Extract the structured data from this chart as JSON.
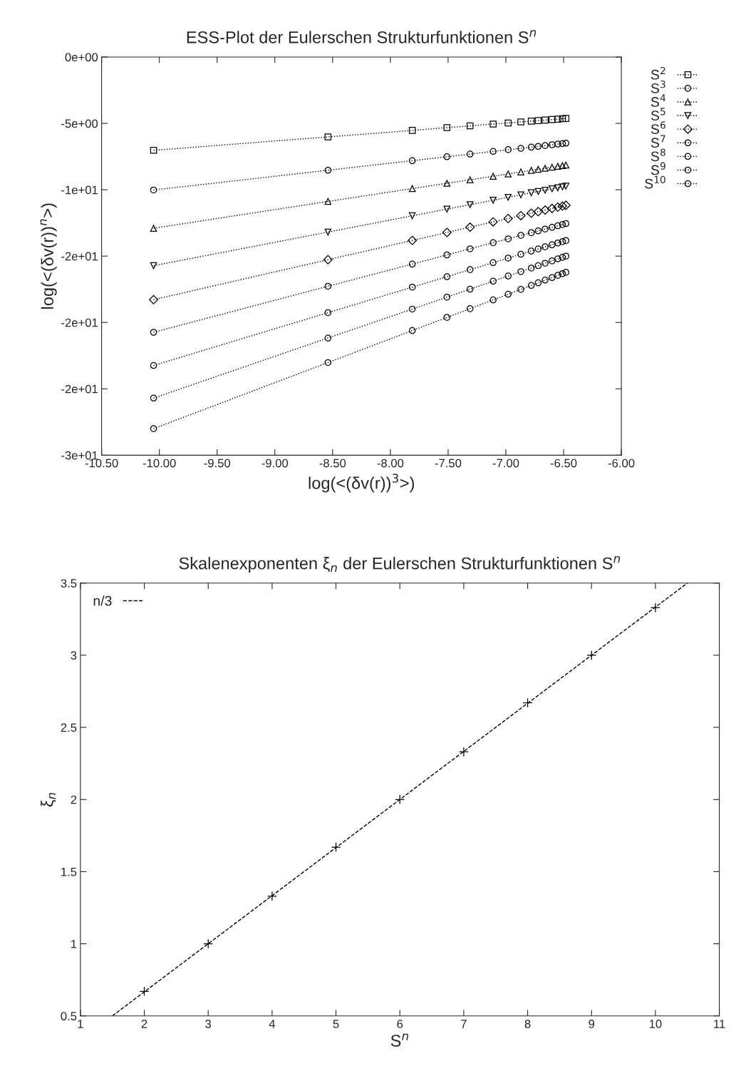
{
  "chart_data": [
    {
      "type": "line",
      "title": "ESS-Plot der Eulerschen Strukturfunktionen S$^{n}$",
      "xlabel": "log(<(δv(r))$^{3}$>)",
      "ylabel": "log(<(δv(r))$^{n}$>)",
      "x": [
        -10.05,
        -8.54,
        -7.81,
        -7.51,
        -7.31,
        -7.11,
        -6.98,
        -6.87,
        -6.78,
        -6.72,
        -6.66,
        -6.6,
        -6.55,
        -6.51,
        -6.48
      ],
      "xlim": [
        -10.5,
        -6.0
      ],
      "ylim": [
        -30,
        0
      ],
      "xticks": [
        {
          "value": -10.5,
          "label": "-10.50"
        },
        {
          "value": -10.0,
          "label": "-10.00"
        },
        {
          "value": -9.5,
          "label": "-9.50"
        },
        {
          "value": -9.0,
          "label": "-9.00"
        },
        {
          "value": -8.5,
          "label": "-8.50"
        },
        {
          "value": -8.0,
          "label": "-8.00"
        },
        {
          "value": -7.5,
          "label": "-7.50"
        },
        {
          "value": -7.0,
          "label": "-7.00"
        },
        {
          "value": -6.5,
          "label": "-6.50"
        },
        {
          "value": -6.0,
          "label": "-6.00"
        }
      ],
      "yticks": [
        {
          "value": 0,
          "label": "0e+00"
        },
        {
          "value": -5,
          "label": "-5e+00"
        },
        {
          "value": -10,
          "label": "-1e+01"
        },
        {
          "value": -15,
          "label": "-2e+01"
        },
        {
          "value": -20,
          "label": "-2e+01"
        },
        {
          "value": -25,
          "label": "-2e+01"
        },
        {
          "value": -30,
          "label": "-3e+01"
        }
      ],
      "grid": false,
      "legend": "right",
      "line_style": "dotted",
      "series": [
        {
          "name": "S$^{2}$",
          "color": "#000000",
          "marker": "square",
          "values": [
            -7.03,
            -6.02,
            -5.53,
            -5.32,
            -5.19,
            -5.05,
            -4.97,
            -4.89,
            -4.83,
            -4.79,
            -4.75,
            -4.71,
            -4.68,
            -4.65,
            -4.63
          ]
        },
        {
          "name": "S$^{3}$",
          "color": "#000000",
          "marker": "circle",
          "values": [
            -10.02,
            -8.53,
            -7.81,
            -7.51,
            -7.31,
            -7.11,
            -6.98,
            -6.88,
            -6.79,
            -6.73,
            -6.67,
            -6.61,
            -6.56,
            -6.52,
            -6.49
          ]
        },
        {
          "name": "S$^{4}$",
          "color": "#000000",
          "marker": "triangle",
          "values": [
            -12.9,
            -10.88,
            -9.91,
            -9.51,
            -9.25,
            -8.98,
            -8.81,
            -8.66,
            -8.54,
            -8.46,
            -8.38,
            -8.3,
            -8.23,
            -8.18,
            -8.14
          ]
        },
        {
          "name": "S$^{5}$",
          "color": "#000000",
          "marker": "triangle_down",
          "values": [
            -15.72,
            -13.19,
            -11.96,
            -11.46,
            -11.12,
            -10.79,
            -10.57,
            -10.38,
            -10.23,
            -10.13,
            -10.03,
            -9.93,
            -9.85,
            -9.78,
            -9.73
          ]
        },
        {
          "name": "S$^{6}$",
          "color": "#000000",
          "marker": "diamond",
          "values": [
            -18.28,
            -15.27,
            -13.82,
            -13.22,
            -12.82,
            -12.42,
            -12.17,
            -11.95,
            -11.77,
            -11.65,
            -11.53,
            -11.41,
            -11.31,
            -11.23,
            -11.17
          ]
        },
        {
          "name": "S$^{7}$",
          "color": "#000000",
          "marker": "circle",
          "values": [
            -20.74,
            -17.27,
            -15.6,
            -14.91,
            -14.45,
            -13.99,
            -13.7,
            -13.44,
            -13.24,
            -13.1,
            -12.96,
            -12.83,
            -12.71,
            -12.62,
            -12.55
          ]
        },
        {
          "name": "S$^{8}$",
          "color": "#000000",
          "marker": "circle",
          "values": [
            -23.24,
            -19.26,
            -17.34,
            -16.55,
            -16.02,
            -15.49,
            -15.15,
            -14.86,
            -14.62,
            -14.46,
            -14.3,
            -14.15,
            -14.01,
            -13.91,
            -13.83
          ]
        },
        {
          "name": "S$^{9}$",
          "color": "#000000",
          "marker": "circle",
          "values": [
            -25.7,
            -21.17,
            -18.99,
            -18.09,
            -17.49,
            -16.89,
            -16.5,
            -16.17,
            -15.9,
            -15.72,
            -15.54,
            -15.36,
            -15.21,
            -15.09,
            -15.0
          ]
        },
        {
          "name": "S$^{10}$",
          "color": "#000000",
          "marker": "circle",
          "values": [
            -28.0,
            -23.02,
            -20.61,
            -19.62,
            -18.96,
            -18.3,
            -17.87,
            -17.51,
            -17.21,
            -17.01,
            -16.81,
            -16.62,
            -16.45,
            -16.32,
            -16.22
          ]
        }
      ]
    },
    {
      "type": "scatter",
      "title": "Skalenexponenten ξ$_{n}$ der Eulerschen Strukturfunktionen S$^{n}$",
      "xlabel": "S$^{n}$",
      "ylabel": "ξ$_{n}$",
      "xlim": [
        1,
        11
      ],
      "ylim": [
        0.5,
        3.5
      ],
      "xticks": [
        1,
        2,
        3,
        4,
        5,
        6,
        7,
        8,
        9,
        10,
        11
      ],
      "yticks": [
        0.5,
        1,
        1.5,
        2,
        2.5,
        3,
        3.5
      ],
      "grid": false,
      "legend": "top left",
      "series": [
        {
          "type": "scatter",
          "color": "#000000",
          "marker": "cross",
          "x": [
            2,
            3,
            4,
            5,
            6,
            7,
            8,
            9,
            10
          ],
          "values": [
            0.67,
            1.0,
            1.33,
            1.67,
            2.0,
            2.33,
            2.67,
            3.0,
            3.33
          ]
        },
        {
          "type": "line",
          "name": "n/3",
          "color": "#000000",
          "line_style": "dashed",
          "marker": "none",
          "x": [
            1.5,
            10.5
          ],
          "values": [
            0.5,
            3.5
          ]
        }
      ]
    }
  ]
}
